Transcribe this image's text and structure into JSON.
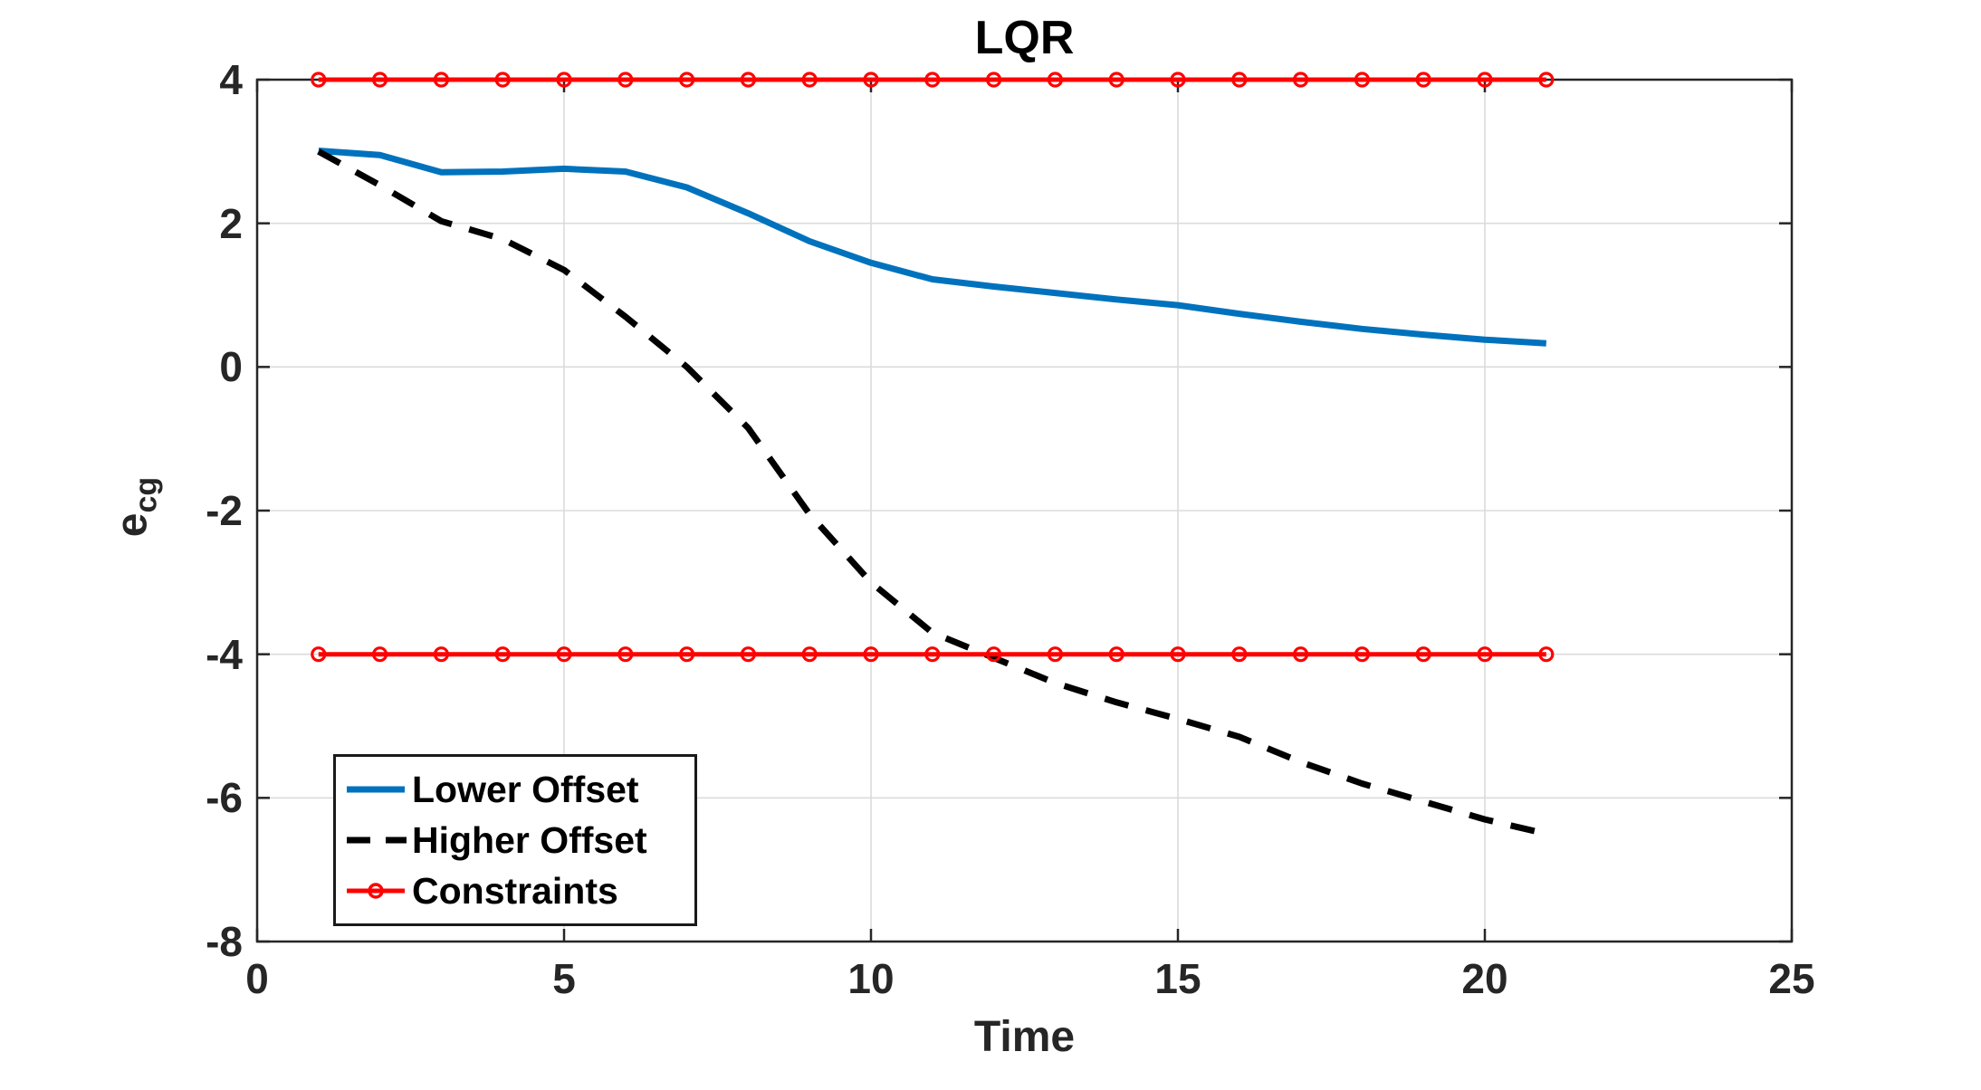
{
  "title": "LQR",
  "axis_labels": {
    "x": "Time",
    "y_main": "e",
    "y_sub": "cg"
  },
  "ticks": {
    "x_labels": [
      "0",
      "5",
      "10",
      "15",
      "20",
      "25"
    ],
    "x_values": [
      0,
      5,
      10,
      15,
      20,
      25
    ],
    "y_labels": [
      "4",
      "2",
      "0",
      "-2",
      "-4",
      "-6",
      "-8"
    ],
    "y_values": [
      4,
      2,
      0,
      -2,
      -4,
      -6,
      -8
    ]
  },
  "colors": {
    "lower_offset": "#0072BD",
    "higher_offset": "#000000",
    "constraints": "#FF0000",
    "axis": "#262626",
    "grid": "#DBDBDB",
    "background": "#FFFFFF"
  },
  "legend": {
    "items": [
      {
        "label": "Lower Offset",
        "color": "#0072BD",
        "style": "solid"
      },
      {
        "label": "Higher Offset",
        "color": "#000000",
        "style": "dashed"
      },
      {
        "label": "Constraints",
        "color": "#FF0000",
        "style": "solid-circle"
      }
    ]
  },
  "chart_data": {
    "type": "line",
    "title": "LQR",
    "xlabel": "Time",
    "ylabel": "e_cg",
    "xlim": [
      0,
      25
    ],
    "ylim": [
      -8,
      4
    ],
    "xticks": [
      0,
      5,
      10,
      15,
      20,
      25
    ],
    "yticks": [
      4,
      2,
      0,
      -2,
      -4,
      -6,
      -8
    ],
    "grid": true,
    "legend_position": "lower-left",
    "x": [
      1,
      2,
      3,
      4,
      5,
      6,
      7,
      8,
      9,
      10,
      11,
      12,
      13,
      14,
      15,
      16,
      17,
      18,
      19,
      20,
      21
    ],
    "series": [
      {
        "name": "Lower Offset",
        "color": "#0072BD",
        "style": "solid",
        "width": 7,
        "values": [
          3.01,
          2.95,
          2.71,
          2.72,
          2.76,
          2.72,
          2.5,
          2.14,
          1.75,
          1.45,
          1.22,
          1.12,
          1.03,
          0.94,
          0.86,
          0.74,
          0.63,
          0.53,
          0.45,
          0.38,
          0.33
        ]
      },
      {
        "name": "Higher Offset",
        "color": "#000000",
        "style": "dashed",
        "width": 7,
        "values": [
          3.0,
          2.53,
          2.03,
          1.78,
          1.35,
          0.7,
          0.0,
          -0.85,
          -2.05,
          -3.0,
          -3.7,
          -4.05,
          -4.4,
          -4.67,
          -4.9,
          -5.15,
          -5.5,
          -5.8,
          -6.05,
          -6.3,
          -6.5
        ]
      },
      {
        "name": "Constraints (upper bound)",
        "color": "#FF0000",
        "style": "solid-circle",
        "width": 5,
        "values": [
          4,
          4,
          4,
          4,
          4,
          4,
          4,
          4,
          4,
          4,
          4,
          4,
          4,
          4,
          4,
          4,
          4,
          4,
          4,
          4,
          4
        ]
      },
      {
        "name": "Constraints (lower bound)",
        "color": "#FF0000",
        "style": "solid-circle",
        "width": 5,
        "values": [
          -4,
          -4,
          -4,
          -4,
          -4,
          -4,
          -4,
          -4,
          -4,
          -4,
          -4,
          -4,
          -4,
          -4,
          -4,
          -4,
          -4,
          -4,
          -4,
          -4,
          -4
        ]
      }
    ]
  }
}
